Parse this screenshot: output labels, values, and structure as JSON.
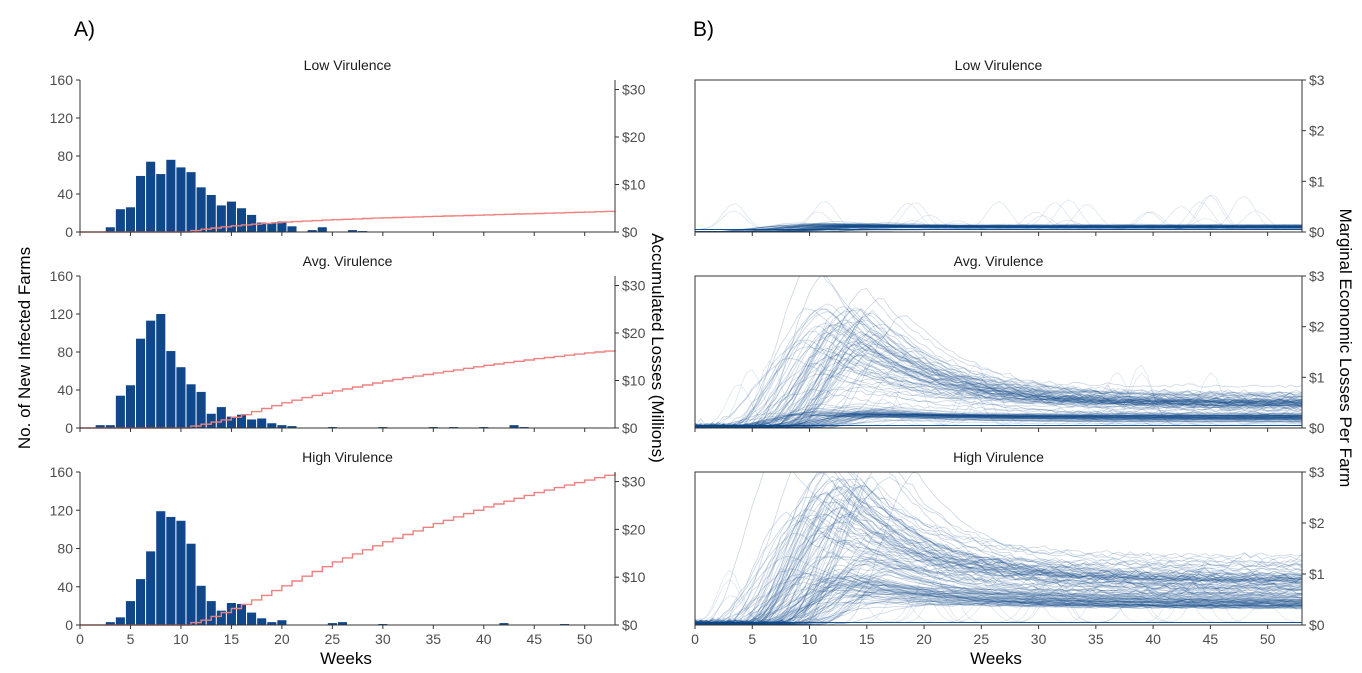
{
  "colors": {
    "bar": "#10478a",
    "cumulative_line": "#f08080",
    "trajectory": "#10478a"
  },
  "chart_data": [
    {
      "panel": "A)",
      "type": "bar",
      "ylabel": "No. of New Infected Farms",
      "y2label": "Accumulated Losses (Millions)",
      "xlabel": "Weeks",
      "xlim": [
        0,
        53
      ],
      "ylim": [
        0,
        160
      ],
      "y2lim": [
        0,
        32
      ],
      "xticks": [
        0,
        5,
        10,
        15,
        20,
        25,
        30,
        35,
        40,
        45,
        50
      ],
      "yticks": [
        0,
        40,
        80,
        120,
        160
      ],
      "y2ticks": [
        "$0",
        "$10",
        "$20",
        "$30"
      ],
      "y2tick_values": [
        0,
        10,
        20,
        30
      ],
      "facets": [
        {
          "title": "Low Virulence",
          "bars": [
            [
              3,
              5
            ],
            [
              4,
              24
            ],
            [
              5,
              26
            ],
            [
              6,
              59
            ],
            [
              7,
              74
            ],
            [
              8,
              61
            ],
            [
              9,
              76
            ],
            [
              10,
              68
            ],
            [
              11,
              63
            ],
            [
              12,
              47
            ],
            [
              13,
              39
            ],
            [
              14,
              28
            ],
            [
              15,
              32
            ],
            [
              16,
              25
            ],
            [
              17,
              18
            ],
            [
              18,
              10
            ],
            [
              19,
              9
            ],
            [
              20,
              11
            ],
            [
              21,
              6
            ],
            [
              23,
              2
            ],
            [
              24,
              5
            ],
            [
              27,
              2
            ],
            [
              28,
              1
            ]
          ],
          "cumulative": [
            [
              0,
              0
            ],
            [
              10,
              0
            ],
            [
              12,
              0.6
            ],
            [
              14,
              1.1
            ],
            [
              16,
              1.5
            ],
            [
              18,
              1.8
            ],
            [
              20,
              2.1
            ],
            [
              22,
              2.3
            ],
            [
              25,
              2.6
            ],
            [
              30,
              3.0
            ],
            [
              35,
              3.3
            ],
            [
              40,
              3.6
            ],
            [
              45,
              3.9
            ],
            [
              50,
              4.2
            ],
            [
              53,
              4.4
            ]
          ]
        },
        {
          "title": "Avg. Virulence",
          "bars": [
            [
              2,
              3
            ],
            [
              3,
              3
            ],
            [
              4,
              34
            ],
            [
              5,
              45
            ],
            [
              6,
              94
            ],
            [
              7,
              113
            ],
            [
              8,
              120
            ],
            [
              9,
              81
            ],
            [
              10,
              64
            ],
            [
              11,
              46
            ],
            [
              12,
              38
            ],
            [
              13,
              15
            ],
            [
              14,
              22
            ],
            [
              15,
              12
            ],
            [
              16,
              14
            ],
            [
              17,
              9
            ],
            [
              18,
              10
            ],
            [
              19,
              5
            ],
            [
              20,
              3
            ],
            [
              21,
              2
            ],
            [
              25,
              1
            ],
            [
              30,
              1
            ],
            [
              35,
              1
            ],
            [
              37,
              1
            ],
            [
              40,
              1
            ],
            [
              43,
              3
            ],
            [
              44,
              1
            ]
          ],
          "cumulative": [
            [
              0,
              0
            ],
            [
              10,
              0
            ],
            [
              12,
              0.8
            ],
            [
              14,
              1.7
            ],
            [
              16,
              2.8
            ],
            [
              18,
              4.1
            ],
            [
              20,
              5.3
            ],
            [
              22,
              6.4
            ],
            [
              25,
              7.8
            ],
            [
              30,
              9.9
            ],
            [
              35,
              11.6
            ],
            [
              40,
              13.2
            ],
            [
              45,
              14.6
            ],
            [
              50,
              15.8
            ],
            [
              53,
              16.4
            ]
          ]
        },
        {
          "title": "High Virulence",
          "bars": [
            [
              3,
              3
            ],
            [
              4,
              8
            ],
            [
              5,
              25
            ],
            [
              6,
              48
            ],
            [
              7,
              77
            ],
            [
              8,
              119
            ],
            [
              9,
              113
            ],
            [
              10,
              109
            ],
            [
              11,
              85
            ],
            [
              12,
              41
            ],
            [
              13,
              25
            ],
            [
              14,
              15
            ],
            [
              15,
              23
            ],
            [
              16,
              22
            ],
            [
              17,
              13
            ],
            [
              18,
              7
            ],
            [
              19,
              3
            ],
            [
              20,
              5
            ],
            [
              25,
              2
            ],
            [
              26,
              3
            ],
            [
              30,
              1
            ],
            [
              42,
              2
            ],
            [
              48,
              1
            ]
          ],
          "cumulative": [
            [
              0,
              0
            ],
            [
              10,
              0
            ],
            [
              12,
              1.0
            ],
            [
              14,
              2.6
            ],
            [
              16,
              4.3
            ],
            [
              18,
              6.2
            ],
            [
              20,
              8.2
            ],
            [
              22,
              10.2
            ],
            [
              25,
              13.2
            ],
            [
              30,
              17.4
            ],
            [
              35,
              21.2
            ],
            [
              40,
              24.7
            ],
            [
              45,
              27.7
            ],
            [
              50,
              30.3
            ],
            [
              53,
              31.8
            ]
          ]
        }
      ]
    },
    {
      "panel": "B)",
      "type": "line",
      "xlabel": "Weeks",
      "y2label": "Marginal Economic Losses Per Farm",
      "xlim": [
        0,
        53
      ],
      "y2lim": [
        0,
        3
      ],
      "xticks": [
        0,
        5,
        10,
        15,
        20,
        25,
        30,
        35,
        40,
        45,
        50
      ],
      "y2ticks": [
        "$0",
        "$1",
        "$2",
        "$3"
      ],
      "y2tick_values": [
        0,
        1,
        2,
        3
      ],
      "facets": [
        {
          "title": "Low Virulence",
          "bands": [
            {
              "rise_end": 13,
              "plateau": 0.12,
              "tail": 0.1
            }
          ]
        },
        {
          "title": "Avg. Virulence",
          "bands": [
            {
              "rise_end": 13,
              "plateau": 1.85,
              "tail": 0.45
            },
            {
              "rise_end": 14,
              "plateau": 0.28,
              "tail": 0.2
            }
          ]
        },
        {
          "title": "High Virulence",
          "bands": [
            {
              "rise_end": 13,
              "plateau": 2.3,
              "tail": 0.82
            },
            {
              "rise_end": 14,
              "plateau": 0.85,
              "tail": 0.45
            }
          ]
        }
      ]
    }
  ]
}
